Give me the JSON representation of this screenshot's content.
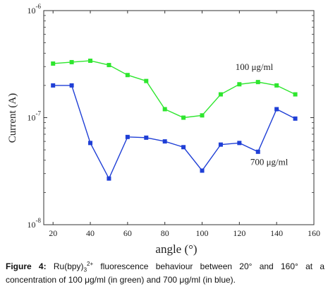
{
  "chart_data": {
    "type": "line",
    "xlabel": "angle (°)",
    "ylabel": "Current (A)",
    "xlim": [
      15,
      160
    ],
    "ylim": [
      1e-08,
      1e-06
    ],
    "yscale": "log",
    "x_ticks": [
      "20",
      "40",
      "60",
      "80",
      "100",
      "120",
      "140",
      "160"
    ],
    "y_ticks": [
      {
        "base": "10",
        "exp": "-6"
      },
      {
        "base": "10",
        "exp": "-7"
      },
      {
        "base": "10",
        "exp": "-8"
      }
    ],
    "grid": false,
    "series": [
      {
        "name": "100 μg/ml",
        "color": "#2ee62e",
        "x": [
          20,
          30,
          40,
          50,
          60,
          70,
          80,
          90,
          100,
          110,
          120,
          130,
          140,
          150
        ],
        "values": [
          3.2e-07,
          3.3e-07,
          3.4e-07,
          3.1e-07,
          2.5e-07,
          2.2e-07,
          1.2e-07,
          1e-07,
          1.05e-07,
          1.65e-07,
          2.05e-07,
          2.15e-07,
          2e-07,
          1.65e-07
        ]
      },
      {
        "name": "700 μg/ml",
        "color": "#1f3fd6",
        "x": [
          20,
          30,
          40,
          50,
          60,
          70,
          80,
          90,
          100,
          110,
          120,
          130,
          140,
          150
        ],
        "values": [
          2e-07,
          2e-07,
          5.8e-08,
          2.7e-08,
          6.6e-08,
          6.5e-08,
          6e-08,
          5.3e-08,
          3.2e-08,
          5.6e-08,
          5.8e-08,
          4.8e-08,
          1.2e-07,
          9.8e-08
        ]
      }
    ],
    "annotations": [
      {
        "text": "100 μg/ml",
        "x": 128,
        "y": 2.8e-07
      },
      {
        "text": "700 μg/ml",
        "x": 136,
        "y": 3.6e-08
      }
    ]
  },
  "caption": {
    "label": "Figure 4:",
    "text_pre": " Ru(bpy)",
    "sub": "3",
    "sup": "2+",
    "text_post": " fluorescence behaviour between 20° and 160° at a concentration of 100 μg/ml (in green) and 700 μg/ml (in blue)."
  }
}
